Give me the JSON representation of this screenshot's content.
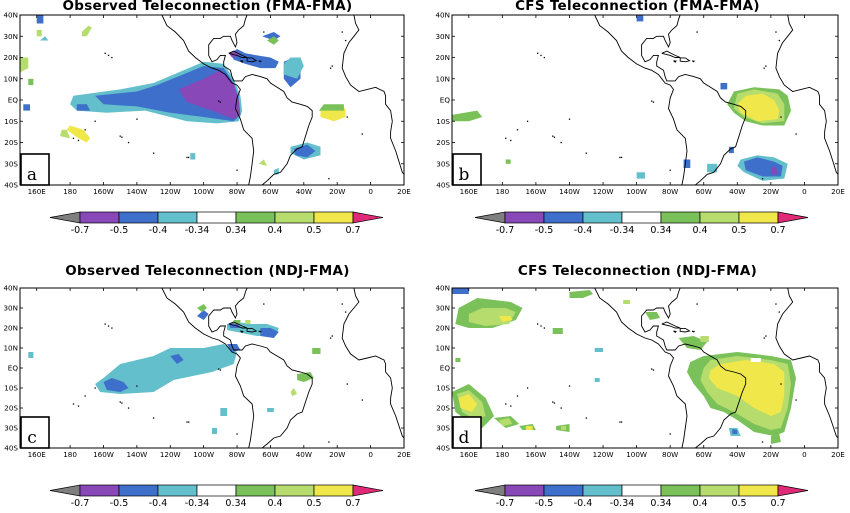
{
  "colors": {
    "n07": "#7f7f7f",
    "n05": "#8848b8",
    "n04": "#3d6fcb",
    "n034": "#63bfcb",
    "neutral": "#ffffff",
    "p034": "#79c158",
    "p04": "#b5dc6d",
    "p05": "#f0e84a",
    "p07": "#df2a77"
  },
  "lat_labels": [
    "40N",
    "30N",
    "20N",
    "10N",
    "EQ",
    "10S",
    "20S",
    "30S",
    "40S"
  ],
  "lon_labels": [
    "160E",
    "180",
    "160W",
    "140W",
    "120W",
    "100W",
    "80W",
    "60W",
    "40W",
    "20W",
    "0",
    "20E"
  ],
  "colorbar_labels": [
    "-0.7",
    "-0.5",
    "-0.4",
    "-0.34",
    "0.34",
    "0.4",
    "0.5",
    "0.7"
  ],
  "panels": [
    {
      "id": "a",
      "title": "Observed Teleconnection (FMA-FMA)",
      "letter": "a"
    },
    {
      "id": "b",
      "title": "CFS Teleconnection (FMA-FMA)",
      "letter": "b"
    },
    {
      "id": "c",
      "title": "Observed Teleconnection (NDJ-FMA)",
      "letter": "c"
    },
    {
      "id": "d",
      "title": "CFS Teleconnection (NDJ-FMA)",
      "letter": "d"
    }
  ]
}
